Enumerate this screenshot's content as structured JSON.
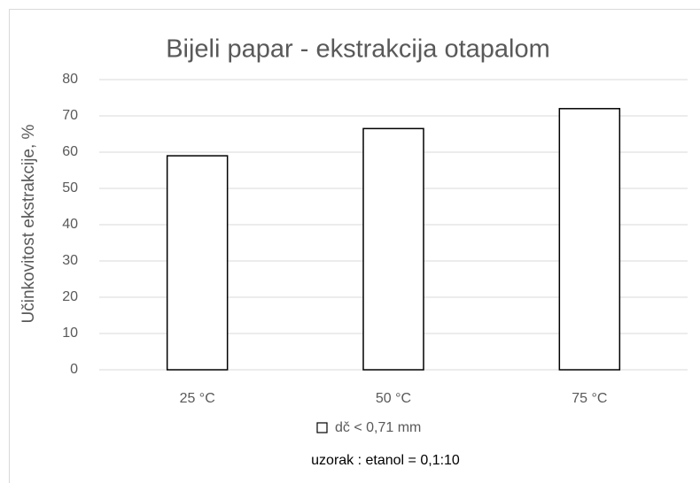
{
  "chart_data": {
    "type": "bar",
    "title": "Bijeli papar - ekstrakcija otapalom",
    "ylabel": "Učinkovitost ekstrakcije, %",
    "categories": [
      "25 °C",
      "50 °C",
      "75 °C"
    ],
    "series": [
      {
        "name": "dč < 0,71 mm",
        "color": "#ffffff",
        "edgecolor": "#000000",
        "values": [
          59,
          66.5,
          72
        ]
      }
    ],
    "annotation": "uzorak : etanol = 0,1:10",
    "ylim": [
      0,
      80
    ],
    "yticks": [
      0,
      10,
      20,
      30,
      40,
      50,
      60,
      70,
      80
    ],
    "grid": true,
    "legend": "bottom"
  }
}
